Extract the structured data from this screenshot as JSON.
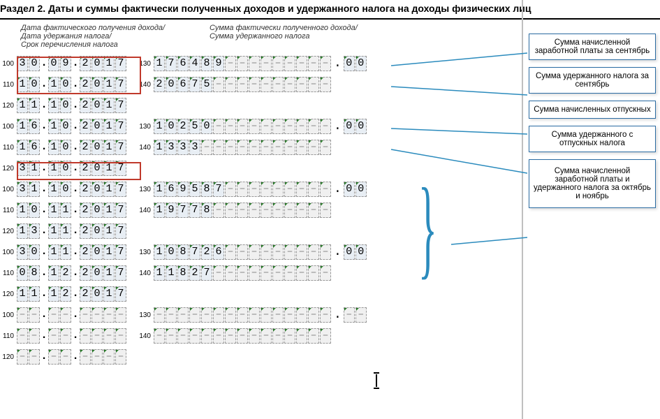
{
  "title": "Раздел 2. Даты и суммы фактически полученных доходов и удержанного налога на доходы физических лиц",
  "sub1_l1": "Дата фактического получения дохода/",
  "sub1_l2": "Дата удержания налога/",
  "sub1_l3": "Срок перечисления налога",
  "sub2_l1": "Сумма фактически полученного дохода/",
  "sub2_l2": "Сумма удержанного налога",
  "groups": [
    {
      "r100": {
        "d": "30",
        "m": "09",
        "y": "2017"
      },
      "r110": {
        "d": "10",
        "m": "10",
        "y": "2017"
      },
      "r120": {
        "d": "11",
        "m": "10",
        "y": "2017"
      },
      "r130": "176489",
      "r130dec": "00",
      "r140": "20675"
    },
    {
      "r100": {
        "d": "16",
        "m": "10",
        "y": "2017"
      },
      "r110": {
        "d": "16",
        "m": "10",
        "y": "2017"
      },
      "r120": {
        "d": "31",
        "m": "10",
        "y": "2017"
      },
      "r130": "10250",
      "r130dec": "00",
      "r140": "1333"
    },
    {
      "r100": {
        "d": "31",
        "m": "10",
        "y": "2017"
      },
      "r110": {
        "d": "10",
        "m": "11",
        "y": "2017"
      },
      "r120": {
        "d": "13",
        "m": "11",
        "y": "2017"
      },
      "r130": "169587",
      "r130dec": "00",
      "r140": "19778"
    },
    {
      "r100": {
        "d": "30",
        "m": "11",
        "y": "2017"
      },
      "r110": {
        "d": "08",
        "m": "12",
        "y": "2017"
      },
      "r120": {
        "d": "11",
        "m": "12",
        "y": "2017"
      },
      "r130": "108726",
      "r130dec": "00",
      "r140": "11827"
    },
    {
      "r100": {
        "d": "--",
        "m": "--",
        "y": "----"
      },
      "r110": {
        "d": "--",
        "m": "--",
        "y": "----"
      },
      "r120": {
        "d": "--",
        "m": "--",
        "y": "----"
      },
      "r130": "",
      "r130dec": "--",
      "r140": ""
    }
  ],
  "sum_width": 15,
  "callouts": [
    "Сумма начисленной заработной платы за сентябрь",
    "Сумма удержанного налога за сентябрь",
    "Сумма начисленных отпускных",
    "Сумма удержанного с отпускных налога",
    "Сумма начисленной заработной платы и удержанного налога за октябрь и ноябрь"
  ],
  "colors": {
    "callout_border": "#2b6ca3",
    "line": "#2b8bbd",
    "hl": "#c0392b"
  }
}
